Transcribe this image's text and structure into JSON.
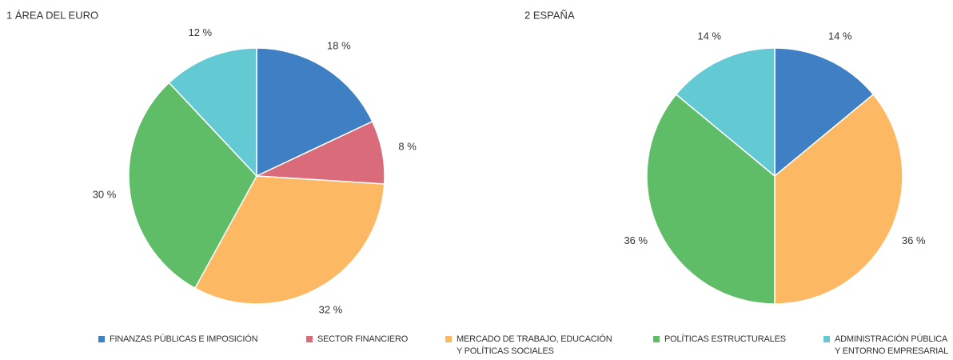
{
  "chart_data": [
    {
      "type": "pie",
      "title": "1  ÁREA DEL EURO",
      "values": [
        18,
        8,
        32,
        30,
        12
      ],
      "value_labels": [
        "18 %",
        "8 %",
        "32 %",
        "30 %",
        "12 %"
      ]
    },
    {
      "type": "pie",
      "title": "2  ESPAÑA",
      "values": [
        14,
        null,
        36,
        36,
        14
      ],
      "value_labels": [
        "14 %",
        null,
        "36 %",
        "36 %",
        "14 %"
      ]
    }
  ],
  "legend": {
    "labels": [
      "FINANZAS PÚBLICAS E IMPOSICIÓN",
      "SECTOR FINANCIERO",
      "MERCADO DE TRABAJO, EDUCACIÓN\nY POLÍTICAS SOCIALES",
      "POLÍTICAS ESTRUCTURALES",
      "ADMINISTRACIÓN PÚBLICA\nY ENTORNO EMPRESARIAL"
    ],
    "colors": [
      "#3f7fc4",
      "#d96b7a",
      "#fdb863",
      "#5fbd68",
      "#63c9d3"
    ]
  }
}
